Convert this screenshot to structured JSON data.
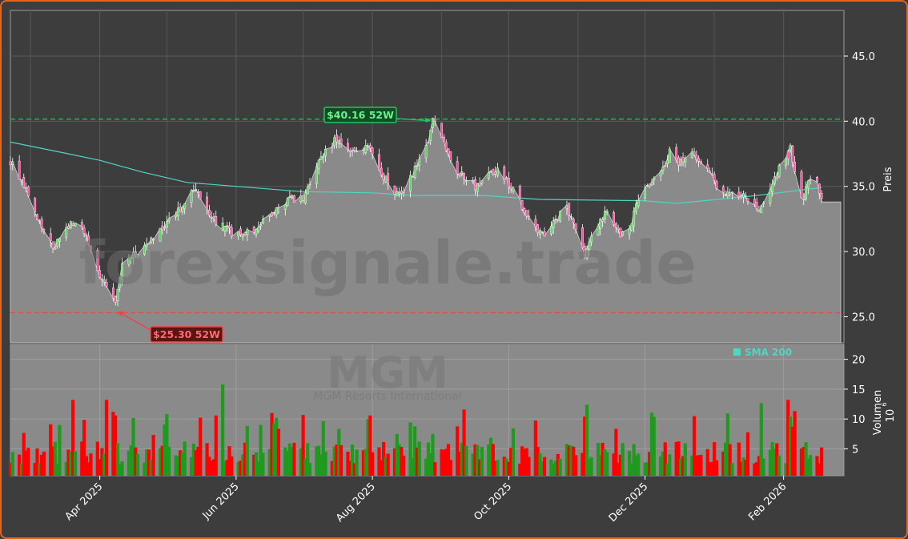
{
  "chart_data": {
    "type": "candlestick",
    "watermark": "forexsignale.trade",
    "symbol": "MGM",
    "company": "MGM Resorts International",
    "colors": {
      "background": "#3d3d3d",
      "area": "#8a8a8a",
      "up": "#1f9a1f",
      "down": "#ff0000",
      "sma": "#4fd6c4",
      "high_line": "#22c55e",
      "low_line": "#ef4444",
      "border": "#e8641a"
    },
    "price_axis": {
      "label": "Preis",
      "ticks": [
        "25.0",
        "30.0",
        "35.0",
        "40.0",
        "45.0"
      ],
      "tick_values": [
        25,
        30,
        35,
        40,
        45
      ],
      "ylim": [
        23.0,
        48.5
      ]
    },
    "volume_axis": {
      "label": "Volumen",
      "unit_base": "10",
      "unit_exp": "6",
      "ticks": [
        "5",
        "10",
        "15",
        "20"
      ],
      "tick_values": [
        5,
        10,
        15,
        20
      ],
      "ylim": [
        0.5,
        22.5
      ]
    },
    "x_axis": {
      "ticks": [
        "Apr 2025",
        "Jun 2025",
        "Aug 2025",
        "Oct 2025",
        "Dec 2025",
        "Feb 2026"
      ],
      "tick_dates": [
        "2025-04-01",
        "2025-06-01",
        "2025-08-01",
        "2025-10-01",
        "2025-12-01",
        "2026-02-01"
      ],
      "range": [
        "2025-02-20",
        "2026-02-28"
      ]
    },
    "high_52w": {
      "value": 40.16,
      "label": "$40.16 52W",
      "date": "2025-08-28"
    },
    "low_52w": {
      "value": 25.3,
      "label": "$25.30 52W",
      "date": "2025-04-08"
    },
    "legend": {
      "label": "SMA 200",
      "position": "lower-right of price panel"
    },
    "close_anchors": [
      [
        "2025-02-20",
        37.0
      ],
      [
        "2025-02-25",
        35.5
      ],
      [
        "2025-03-01",
        33.5
      ],
      [
        "2025-03-06",
        31.8
      ],
      [
        "2025-03-12",
        30.3
      ],
      [
        "2025-03-16",
        31.6
      ],
      [
        "2025-03-21",
        32.5
      ],
      [
        "2025-03-25",
        31.7
      ],
      [
        "2025-03-30",
        29.0
      ],
      [
        "2025-04-03",
        27.6
      ],
      [
        "2025-04-08",
        25.8
      ],
      [
        "2025-04-11",
        29.2
      ],
      [
        "2025-04-15",
        29.8
      ],
      [
        "2025-04-22",
        30.5
      ],
      [
        "2025-04-28",
        31.6
      ],
      [
        "2025-05-04",
        32.5
      ],
      [
        "2025-05-10",
        34.0
      ],
      [
        "2025-05-14",
        34.9
      ],
      [
        "2025-05-19",
        33.0
      ],
      [
        "2025-05-25",
        32.0
      ],
      [
        "2025-05-30",
        31.5
      ],
      [
        "2025-06-05",
        31.5
      ],
      [
        "2025-06-10",
        31.8
      ],
      [
        "2025-06-16",
        32.6
      ],
      [
        "2025-06-20",
        33.3
      ],
      [
        "2025-06-25",
        34.0
      ],
      [
        "2025-07-01",
        34.2
      ],
      [
        "2025-07-06",
        36.3
      ],
      [
        "2025-07-10",
        37.6
      ],
      [
        "2025-07-15",
        38.5
      ],
      [
        "2025-07-20",
        37.9
      ],
      [
        "2025-07-25",
        37.5
      ],
      [
        "2025-07-30",
        38.2
      ],
      [
        "2025-08-04",
        36.5
      ],
      [
        "2025-08-09",
        34.8
      ],
      [
        "2025-08-14",
        34.2
      ],
      [
        "2025-08-19",
        36.1
      ],
      [
        "2025-08-24",
        37.2
      ],
      [
        "2025-08-28",
        40.0
      ],
      [
        "2025-09-01",
        38.8
      ],
      [
        "2025-09-06",
        36.5
      ],
      [
        "2025-09-12",
        35.5
      ],
      [
        "2025-09-17",
        34.9
      ],
      [
        "2025-09-22",
        36.2
      ],
      [
        "2025-09-27",
        36.3
      ],
      [
        "2025-10-02",
        34.8
      ],
      [
        "2025-10-07",
        33.5
      ],
      [
        "2025-10-12",
        31.8
      ],
      [
        "2025-10-17",
        31.3
      ],
      [
        "2025-10-22",
        32.6
      ],
      [
        "2025-10-27",
        33.3
      ],
      [
        "2025-10-31",
        31.5
      ],
      [
        "2025-11-04",
        29.6
      ],
      [
        "2025-11-09",
        31.8
      ],
      [
        "2025-11-14",
        33.0
      ],
      [
        "2025-11-19",
        31.6
      ],
      [
        "2025-11-23",
        30.9
      ],
      [
        "2025-11-27",
        33.5
      ],
      [
        "2025-12-02",
        35.2
      ],
      [
        "2025-12-07",
        35.5
      ],
      [
        "2025-12-12",
        37.6
      ],
      [
        "2025-12-17",
        36.8
      ],
      [
        "2025-12-22",
        37.5
      ],
      [
        "2025-12-27",
        36.5
      ],
      [
        "2026-01-01",
        35.4
      ],
      [
        "2026-01-05",
        34.3
      ],
      [
        "2026-01-10",
        34.5
      ],
      [
        "2026-01-15",
        34.0
      ],
      [
        "2026-01-20",
        33.2
      ],
      [
        "2026-01-25",
        34.0
      ],
      [
        "2026-01-30",
        36.5
      ],
      [
        "2026-02-04",
        37.8
      ],
      [
        "2026-02-09",
        33.8
      ],
      [
        "2026-02-13",
        35.9
      ],
      [
        "2026-02-16",
        35.5
      ],
      [
        "2026-02-18",
        33.8
      ]
    ],
    "sma_200": [
      [
        "2025-02-20",
        38.4
      ],
      [
        "2025-03-15",
        37.6
      ],
      [
        "2025-04-01",
        37.0
      ],
      [
        "2025-04-20",
        36.1
      ],
      [
        "2025-05-10",
        35.3
      ],
      [
        "2025-06-01",
        35.0
      ],
      [
        "2025-06-30",
        34.6
      ],
      [
        "2025-08-01",
        34.5
      ],
      [
        "2025-08-20",
        34.3
      ],
      [
        "2025-09-20",
        34.3
      ],
      [
        "2025-10-15",
        34.0
      ],
      [
        "2025-11-30",
        33.9
      ],
      [
        "2025-12-15",
        33.7
      ],
      [
        "2026-01-15",
        34.2
      ],
      [
        "2026-02-18",
        34.9
      ]
    ],
    "last_close": 33.8
  }
}
